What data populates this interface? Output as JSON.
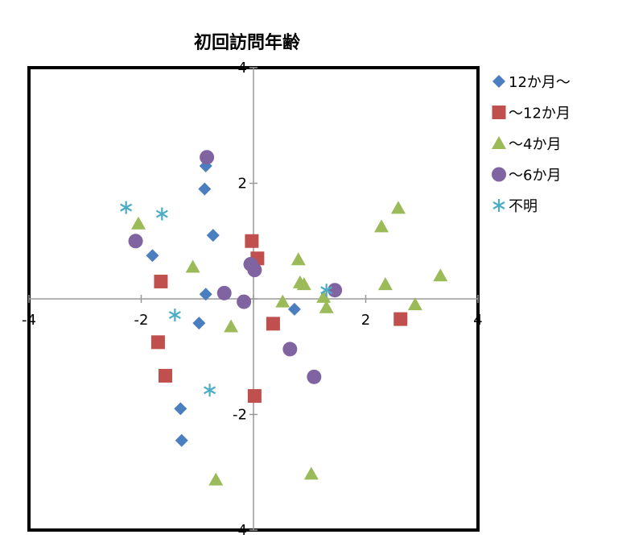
{
  "chart_data": {
    "type": "scatter",
    "title": "初回訪問年齢",
    "xlabel": "",
    "ylabel": "",
    "xlim": [
      -4,
      4
    ],
    "ylim": [
      -4,
      4
    ],
    "xticks": [
      -4,
      -2,
      0,
      2,
      4
    ],
    "yticks": [
      -4,
      -2,
      0,
      2,
      4
    ],
    "grid": false,
    "legend_position": "right",
    "series": [
      {
        "name": "12か月～",
        "marker": "diamond",
        "color": "#4a7ebf",
        "points": [
          [
            -0.85,
            2.3
          ],
          [
            -0.87,
            1.9
          ],
          [
            -0.72,
            1.1
          ],
          [
            -1.8,
            0.75
          ],
          [
            -0.85,
            0.08
          ],
          [
            -0.97,
            -0.42
          ],
          [
            0.73,
            -0.18
          ],
          [
            -1.3,
            -1.9
          ],
          [
            -1.28,
            -2.45
          ]
        ]
      },
      {
        "name": "～12か月",
        "marker": "square",
        "color": "#c0504d",
        "points": [
          [
            -0.03,
            1.0
          ],
          [
            0.07,
            0.7
          ],
          [
            -1.65,
            0.3
          ],
          [
            0.35,
            -0.43
          ],
          [
            -1.7,
            -0.75
          ],
          [
            -1.57,
            -1.33
          ],
          [
            0.02,
            -1.68
          ],
          [
            2.62,
            -0.35
          ]
        ]
      },
      {
        "name": "～4か月",
        "marker": "triangle",
        "color": "#9bbb59",
        "points": [
          [
            -2.05,
            1.3
          ],
          [
            -1.08,
            0.55
          ],
          [
            0.8,
            0.68
          ],
          [
            0.83,
            0.28
          ],
          [
            0.9,
            0.25
          ],
          [
            0.52,
            -0.05
          ],
          [
            1.25,
            0.03
          ],
          [
            1.3,
            -0.15
          ],
          [
            -0.4,
            -0.48
          ],
          [
            2.28,
            1.25
          ],
          [
            2.58,
            1.57
          ],
          [
            2.35,
            0.25
          ],
          [
            3.33,
            0.4
          ],
          [
            2.88,
            -0.1
          ],
          [
            -0.67,
            -3.13
          ],
          [
            1.03,
            -3.03
          ]
        ]
      },
      {
        "name": "～6か月",
        "marker": "circle",
        "color": "#8064a2",
        "points": [
          [
            -0.83,
            2.45
          ],
          [
            -2.1,
            1.0
          ],
          [
            -0.05,
            0.6
          ],
          [
            0.02,
            0.5
          ],
          [
            -0.52,
            0.1
          ],
          [
            -0.17,
            -0.05
          ],
          [
            1.45,
            0.15
          ],
          [
            0.65,
            -0.87
          ],
          [
            1.08,
            -1.35
          ]
        ]
      },
      {
        "name": "不明",
        "marker": "star",
        "color": "#4bacc6",
        "points": [
          [
            -2.27,
            1.58
          ],
          [
            -1.63,
            1.47
          ],
          [
            -1.4,
            -0.28
          ],
          [
            -0.78,
            -1.58
          ],
          [
            1.3,
            0.15
          ]
        ]
      }
    ]
  }
}
